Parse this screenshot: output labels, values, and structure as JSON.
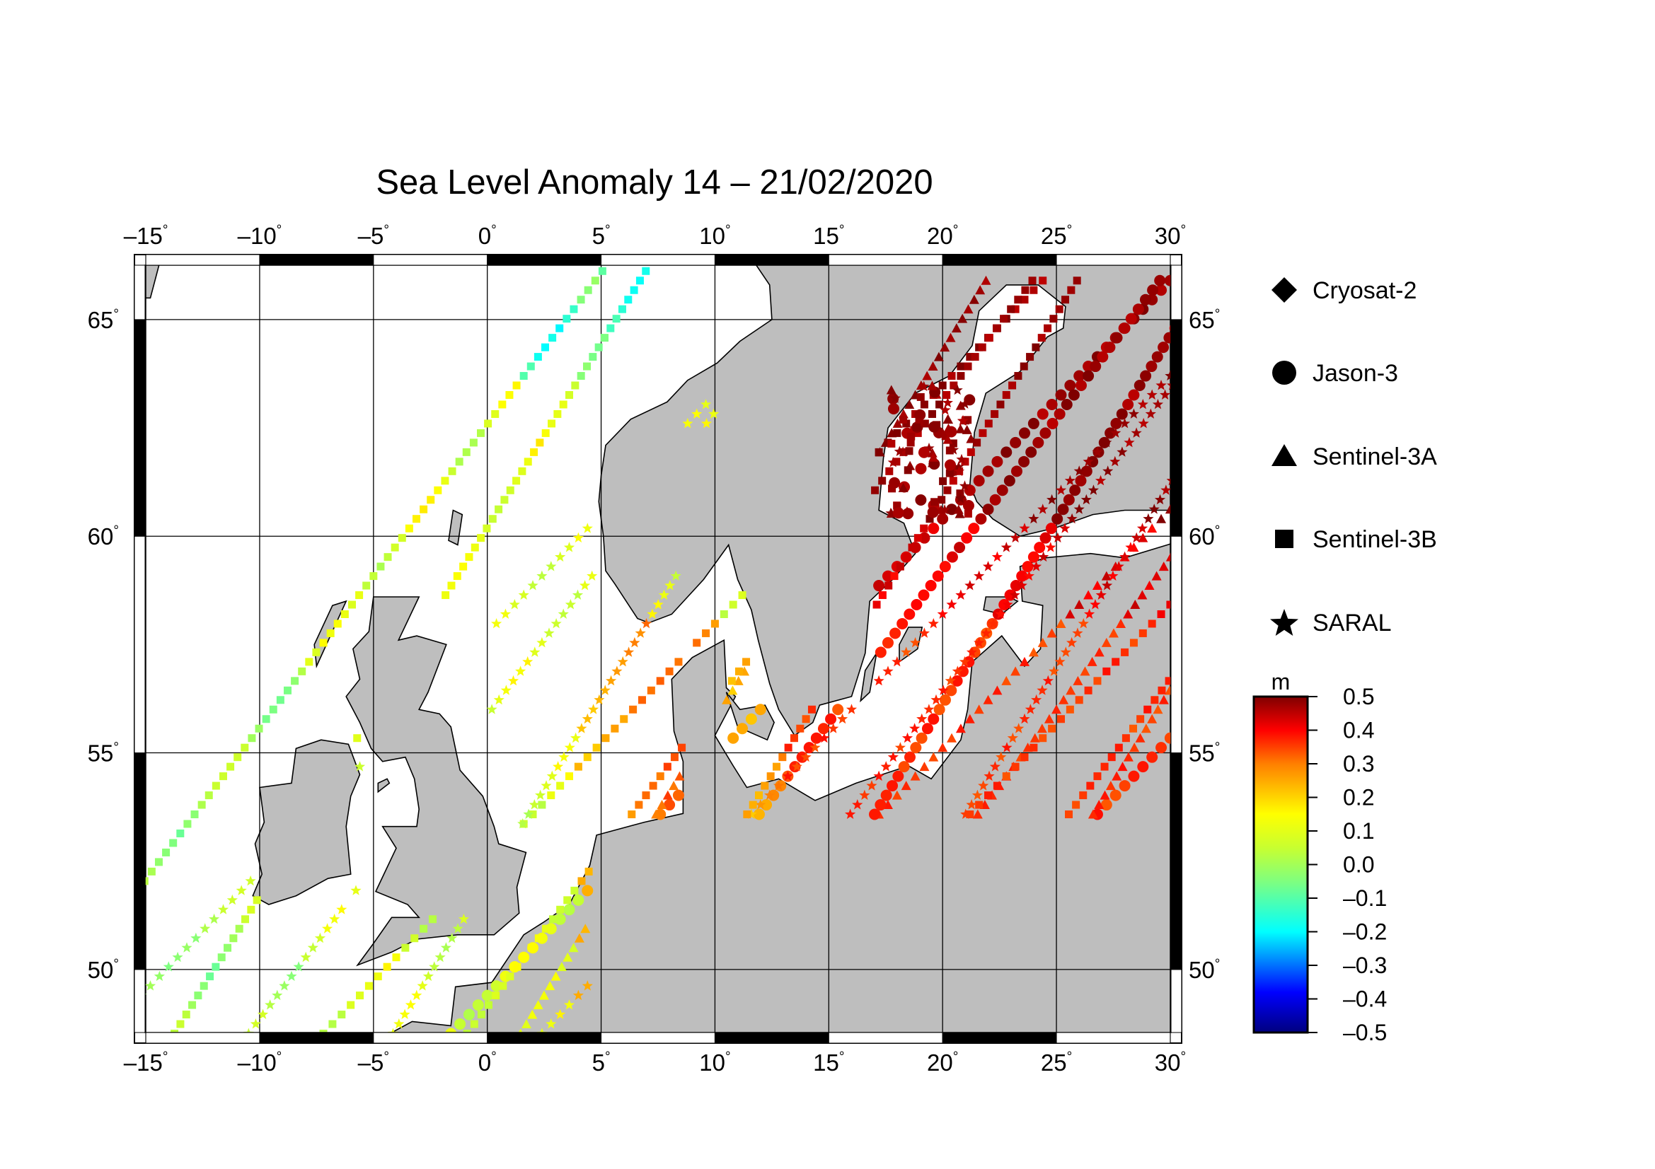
{
  "title": "Sea Level Anomaly 14 – 21/02/2020",
  "map": {
    "projection": "cylindrical-equidistant",
    "lon_range": [
      -15.5,
      30.5
    ],
    "lat_range": [
      48.3,
      66.5
    ],
    "lon_ticks": [
      "–15",
      "–10",
      "–5",
      "0",
      "5",
      "10",
      "15",
      "20",
      "25",
      "30"
    ],
    "lat_ticks": [
      "65",
      "60",
      "55",
      "50"
    ],
    "land_color": "#bebebe",
    "ocean_color": "#ffffff"
  },
  "legend": {
    "items": [
      {
        "label": "Cryosat-2",
        "marker": "diamond"
      },
      {
        "label": "Jason-3",
        "marker": "circle"
      },
      {
        "label": "Sentinel-3A",
        "marker": "triangle"
      },
      {
        "label": "Sentinel-3B",
        "marker": "square"
      },
      {
        "label": "SARAL",
        "marker": "star"
      }
    ]
  },
  "colorbar": {
    "unit": "m",
    "ticks": [
      "0.5",
      "0.4",
      "0.3",
      "0.2",
      "0.1",
      "0.0",
      "–0.1",
      "–0.2",
      "–0.3",
      "–0.4",
      "–0.5"
    ],
    "range": [
      -0.5,
      0.5
    ]
  }
}
